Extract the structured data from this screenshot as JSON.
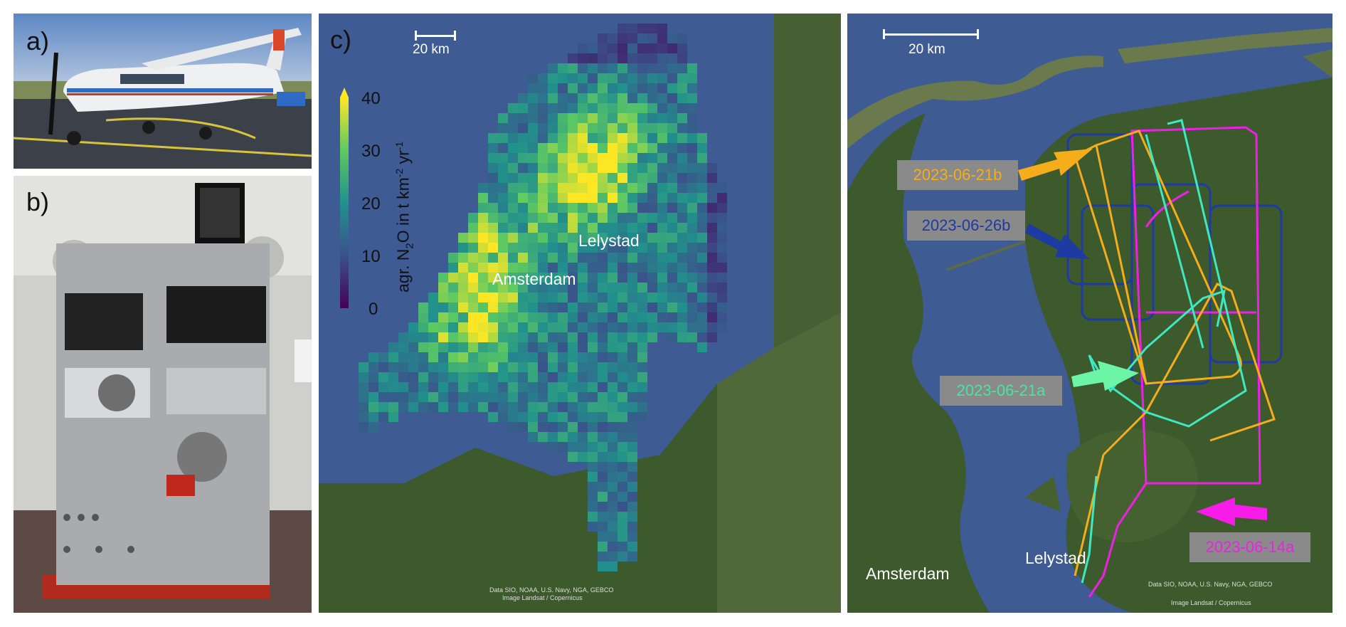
{
  "panels": {
    "a": {
      "label": "a)"
    },
    "b": {
      "label": "b)"
    },
    "c": {
      "label": "c)",
      "scalebar": "20 km",
      "colorbar": {
        "ticks": [
          "40",
          "30",
          "20",
          "10",
          "0"
        ],
        "label_prefix": "agr. N",
        "label_sub2": "2",
        "label_mid": "O in t km",
        "label_sup1": "-2",
        "label_mid2": " yr",
        "label_sup2": "-1"
      },
      "cities": [
        "Lelystad",
        "Amsterdam"
      ],
      "attribution": [
        "Data SIO, NOAA, U.S. Navy, NGA, GEBCO",
        "Image Landsat / Copernicus"
      ]
    },
    "d": {
      "scalebar": "20 km",
      "flights": [
        {
          "name": "2023-06-21b",
          "color": "#f5ad1c"
        },
        {
          "name": "2023-06-26b",
          "color": "#1e3aa3"
        },
        {
          "name": "2023-06-21a",
          "color": "#49e3a8"
        },
        {
          "name": "2023-06-14a",
          "color": "#ee1fe6"
        }
      ],
      "cities": [
        "Amsterdam",
        "Lelystad"
      ],
      "attribution": [
        "Data SIO, NOAA, U.S. Navy, NGA, GEBCO",
        "Image Landsat / Copernicus"
      ]
    }
  },
  "map_colors": {
    "sea": "#3e5b93",
    "land": "#3d5a2c",
    "arrow_2023_06_21b": "#f5ad1c",
    "arrow_2023_06_26b": "#1e3aa3",
    "arrow_2023_06_21a": "#6cf5a6",
    "arrow_2023_06_14a": "#f81ce8",
    "label_bg": "#8a8a8a"
  }
}
